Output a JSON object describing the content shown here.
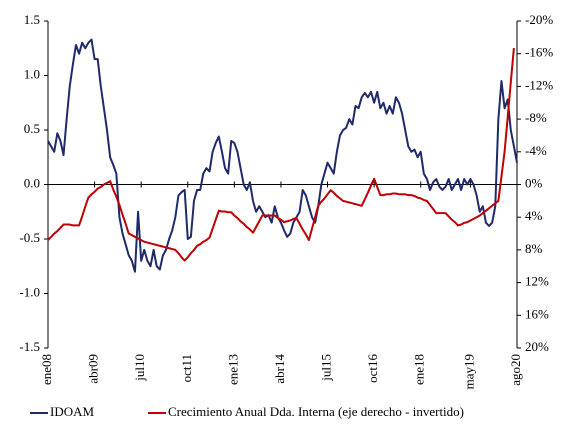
{
  "chart_data": {
    "type": "line",
    "categories": [
      "ene08",
      null,
      null,
      null,
      null,
      null,
      null,
      null,
      null,
      null,
      null,
      null,
      null,
      null,
      null,
      "abr09",
      null,
      null,
      null,
      null,
      null,
      null,
      null,
      null,
      null,
      null,
      null,
      null,
      null,
      null,
      "jul10",
      null,
      null,
      null,
      null,
      null,
      null,
      null,
      null,
      null,
      null,
      null,
      null,
      null,
      null,
      "oct11",
      null,
      null,
      null,
      null,
      null,
      null,
      null,
      null,
      null,
      null,
      null,
      null,
      null,
      null,
      "ene13",
      null,
      null,
      null,
      null,
      null,
      null,
      null,
      null,
      null,
      null,
      null,
      null,
      null,
      null,
      "abr14",
      null,
      null,
      null,
      null,
      null,
      null,
      null,
      null,
      null,
      null,
      null,
      null,
      null,
      null,
      "jul15",
      null,
      null,
      null,
      null,
      null,
      null,
      null,
      null,
      null,
      null,
      null,
      null,
      null,
      null,
      "oct16",
      null,
      null,
      null,
      null,
      null,
      null,
      null,
      null,
      null,
      null,
      null,
      null,
      null,
      null,
      "ene18",
      null,
      null,
      null,
      null,
      null,
      null,
      null,
      null,
      null,
      null,
      null,
      null,
      null,
      null,
      null,
      "may19",
      null,
      null,
      null,
      null,
      null,
      null,
      null,
      null,
      null,
      null,
      null,
      null,
      null,
      null,
      "ago20"
    ],
    "series": [
      {
        "name": "IDOAM",
        "color": "#1f2a6b",
        "axis": "y",
        "values": [
          0.4,
          0.35,
          0.3,
          0.47,
          0.4,
          0.27,
          0.6,
          0.9,
          1.1,
          1.28,
          1.2,
          1.3,
          1.25,
          1.3,
          1.33,
          1.15,
          1.15,
          0.9,
          0.7,
          0.5,
          0.25,
          0.18,
          0.1,
          -0.3,
          -0.45,
          -0.55,
          -0.65,
          -0.7,
          -0.8,
          -0.25,
          -0.7,
          -0.6,
          -0.7,
          -0.75,
          -0.6,
          -0.75,
          -0.78,
          -0.65,
          -0.6,
          -0.5,
          -0.42,
          -0.3,
          -0.1,
          -0.07,
          -0.05,
          -0.5,
          -0.48,
          -0.15,
          -0.05,
          -0.05,
          0.1,
          0.15,
          0.12,
          0.3,
          0.38,
          0.44,
          0.3,
          0.15,
          0.1,
          0.4,
          0.38,
          0.3,
          0.15,
          0.0,
          -0.05,
          0.02,
          -0.15,
          -0.25,
          -0.2,
          -0.25,
          -0.3,
          -0.28,
          -0.35,
          -0.2,
          -0.3,
          -0.35,
          -0.42,
          -0.48,
          -0.45,
          -0.35,
          -0.3,
          -0.25,
          -0.05,
          -0.1,
          -0.2,
          -0.3,
          -0.35,
          -0.2,
          0.0,
          0.1,
          0.2,
          0.15,
          0.1,
          0.3,
          0.45,
          0.5,
          0.52,
          0.6,
          0.55,
          0.72,
          0.7,
          0.8,
          0.84,
          0.8,
          0.85,
          0.75,
          0.85,
          0.7,
          0.75,
          0.65,
          0.72,
          0.65,
          0.8,
          0.75,
          0.65,
          0.5,
          0.35,
          0.3,
          0.32,
          0.25,
          0.3,
          0.1,
          0.05,
          -0.05,
          0.02,
          0.05,
          -0.02,
          -0.05,
          -0.02,
          0.05,
          -0.05,
          0.0,
          0.05,
          -0.05,
          0.05,
          0.0,
          0.05,
          0.0,
          -0.1,
          -0.25,
          -0.2,
          -0.35,
          -0.38,
          -0.35,
          -0.2,
          0.6,
          0.95,
          0.7,
          0.78,
          0.5,
          0.35,
          0.2
        ]
      },
      {
        "name": "Crecimiento Anual Dda. Interna (eje derecho - invertido)",
        "color": "#c00000",
        "axis": "y2",
        "values": [
          6.8,
          6.4,
          6.0,
          5.7,
          5.3,
          4.9,
          4.9,
          4.9,
          5.0,
          5.0,
          5.0,
          3.9,
          2.7,
          1.6,
          1.2,
          0.9,
          0.5,
          0.3,
          0.0,
          -0.2,
          -0.4,
          0.6,
          1.5,
          2.5,
          3.7,
          4.8,
          6.0,
          6.2,
          6.4,
          6.6,
          6.8,
          7.0,
          7.1,
          7.2,
          7.3,
          7.4,
          7.5,
          7.6,
          7.7,
          7.8,
          7.9,
          8.0,
          8.4,
          8.9,
          9.3,
          8.9,
          8.4,
          8.0,
          7.5,
          7.3,
          7.0,
          6.8,
          6.5,
          5.4,
          4.3,
          3.2,
          3.3,
          3.3,
          3.4,
          3.4,
          3.8,
          4.1,
          4.5,
          4.8,
          5.2,
          5.5,
          5.9,
          5.2,
          4.5,
          3.8,
          3.8,
          3.8,
          3.8,
          3.8,
          4.1,
          4.3,
          4.6,
          4.5,
          4.4,
          4.2,
          4.1,
          4.8,
          5.5,
          6.1,
          6.8,
          5.4,
          4.0,
          2.6,
          2.1,
          1.7,
          1.2,
          0.7,
          1.0,
          1.4,
          1.7,
          2.0,
          2.1,
          2.2,
          2.3,
          2.4,
          2.5,
          2.6,
          1.8,
          1.0,
          0.1,
          -0.7,
          0.3,
          1.3,
          1.3,
          1.2,
          1.2,
          1.1,
          1.1,
          1.2,
          1.2,
          1.2,
          1.3,
          1.3,
          1.4,
          1.6,
          1.7,
          1.9,
          2.0,
          2.5,
          3.0,
          3.5,
          3.5,
          3.5,
          3.5,
          3.9,
          4.3,
          4.6,
          5.0,
          4.9,
          4.7,
          4.6,
          4.4,
          4.2,
          4.0,
          3.8,
          3.5,
          3.2,
          2.9,
          2.6,
          2.3,
          2.0,
          -1.0,
          -4.0,
          -8.2,
          -12.5,
          -16.7,
          null
        ]
      }
    ],
    "ylim": [
      -1.5,
      1.5
    ],
    "yticks": [
      {
        "value": -1.5,
        "label": "-1.5"
      },
      {
        "value": -1,
        "label": "-1.0"
      },
      {
        "value": -0.5,
        "label": "-0.5"
      },
      {
        "value": 0,
        "label": "0.0"
      },
      {
        "value": 0.5,
        "label": "0.5"
      },
      {
        "value": 1,
        "label": "1.0"
      },
      {
        "value": 1.5,
        "label": "1.5"
      }
    ],
    "y2lim": [
      20,
      -20
    ],
    "y2ticks": [
      {
        "value": 20,
        "label": "20%"
      },
      {
        "value": 16,
        "label": "16%"
      },
      {
        "value": 12,
        "label": "12%"
      },
      {
        "value": 8,
        "label": "8%"
      },
      {
        "value": 4,
        "label": "4%"
      },
      {
        "value": 0,
        "label": "0%"
      },
      {
        "value": -4,
        "label": "-4%"
      },
      {
        "value": -8,
        "label": "-8%"
      },
      {
        "value": -12,
        "label": "-12%"
      },
      {
        "value": -16,
        "label": "-16%"
      },
      {
        "value": -20,
        "label": "-20%"
      }
    ],
    "legend": "bottom"
  }
}
